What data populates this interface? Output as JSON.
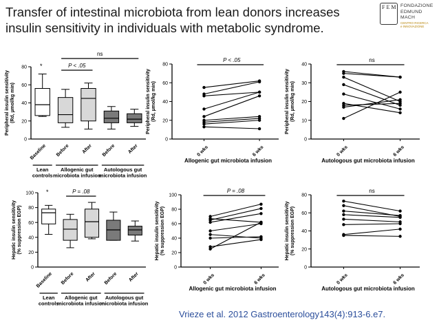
{
  "title": {
    "line1": "Transfer of intestinal microbiota from lean donors increases",
    "line2": "insulin sensitivity in individuals with metabolic syndrome."
  },
  "logo": {
    "lines": [
      "FONDAZIONE",
      "EDMUND",
      "MACH"
    ],
    "sub_lines": [
      "CENTRO RICERCA",
      "e INNOVAZIONE"
    ],
    "mark": "F E M"
  },
  "citation": "Vrieze et al. 2012 Gastroenterology143(4):913-6.e7.",
  "colors": {
    "text": "#1a1a1a",
    "citation": "#2b4e9b",
    "box_white": "#ffffff",
    "box_light": "#d8d8d8",
    "box_dark": "#7a7a7a",
    "line": "#000000"
  },
  "chart_data": [
    {
      "id": "ris-box",
      "type": "box",
      "ylabel": [
        "Peripheral insulin sensitivity",
        "(Rd, µmol/kg min)"
      ],
      "ylim": [
        0,
        80
      ],
      "yticks": [
        0,
        20,
        40,
        60,
        80
      ],
      "categories": [
        "Baseline",
        "Before",
        "After",
        "Before",
        "After"
      ],
      "boxes": [
        {
          "min": 25,
          "q1": 26,
          "median": 38,
          "q3": 56,
          "max": 72,
          "fill": "white"
        },
        {
          "min": 13,
          "q1": 18,
          "median": 27,
          "q3": 46,
          "max": 55,
          "fill": "light"
        },
        {
          "min": 11,
          "q1": 20,
          "median": 45,
          "q3": 56,
          "max": 62,
          "fill": "light"
        },
        {
          "min": 11,
          "q1": 18,
          "median": 23,
          "q3": 31,
          "max": 36,
          "fill": "dark"
        },
        {
          "min": 14,
          "q1": 18,
          "median": 22,
          "q3": 28,
          "max": 33,
          "fill": "dark"
        }
      ],
      "annotations": {
        "star": "*",
        "pvalue": "P < .05",
        "ns": "ns"
      },
      "group_labels": [
        [
          "Lean",
          "controls"
        ],
        [
          "Allogenic gut",
          "microbiota infusion"
        ],
        [
          "Autologous gut",
          "microbiota infusion"
        ]
      ]
    },
    {
      "id": "ris-allo",
      "type": "paired-line",
      "ylabel": [
        "Peripheral insulin sensitivity",
        "(Rd, µmol/kg min)"
      ],
      "ylim": [
        0,
        80
      ],
      "yticks": [
        0,
        20,
        40,
        60,
        80
      ],
      "categories": [
        "0 wks",
        "6 wks"
      ],
      "pairs": [
        [
          13,
          11
        ],
        [
          16,
          20
        ],
        [
          18,
          22
        ],
        [
          20,
          24
        ],
        [
          24,
          46
        ],
        [
          32,
          50
        ],
        [
          46,
          50
        ],
        [
          48,
          61
        ],
        [
          55,
          62
        ]
      ],
      "xlabel": "Allogenic gut microbiota infusion",
      "annotation": "P < .05"
    },
    {
      "id": "ris-auto",
      "type": "paired-line",
      "ylabel": [
        "Peripheral insulin sensitivity",
        "(Rd, µmol/kg min)"
      ],
      "ylim": [
        0,
        40
      ],
      "yticks": [
        0,
        10,
        20,
        30,
        40
      ],
      "categories": [
        "0 wks",
        "6 wks"
      ],
      "pairs": [
        [
          11,
          25
        ],
        [
          17,
          21
        ],
        [
          18,
          19
        ],
        [
          19,
          14
        ],
        [
          24,
          16
        ],
        [
          29,
          18
        ],
        [
          33,
          20
        ],
        [
          35,
          33
        ],
        [
          36,
          33
        ]
      ],
      "xlabel": "Autologous gut microbiota infusion",
      "annotation": "ns"
    },
    {
      "id": "egp-box",
      "type": "box",
      "ylabel": [
        "Hepatic insulin sensitivity",
        "(% suppression EGP)"
      ],
      "ylim": [
        0,
        100
      ],
      "yticks": [
        0,
        20,
        40,
        60,
        80,
        100
      ],
      "categories": [
        "Baseline",
        "Before",
        "After",
        "Before",
        "After"
      ],
      "boxes": [
        {
          "min": 44,
          "q1": 58,
          "median": 73,
          "q3": 78,
          "max": 83,
          "fill": "white"
        },
        {
          "min": 26,
          "q1": 36,
          "median": 51,
          "q3": 64,
          "max": 71,
          "fill": "light"
        },
        {
          "min": 38,
          "q1": 40,
          "median": 61,
          "q3": 78,
          "max": 87,
          "fill": "light"
        },
        {
          "min": 36,
          "q1": 36,
          "median": 50,
          "q3": 63,
          "max": 74,
          "fill": "dark"
        },
        {
          "min": 35,
          "q1": 43,
          "median": 50,
          "q3": 55,
          "max": 62,
          "fill": "dark"
        }
      ],
      "annotations": {
        "star": "*",
        "pvalue": "P = .08"
      },
      "group_labels": [
        [
          "Lean",
          "controls"
        ],
        [
          "Allogenic gut",
          "microbiota infusion"
        ],
        [
          "Autologous gut",
          "microbiota infusion"
        ]
      ]
    },
    {
      "id": "egp-allo",
      "type": "paired-line",
      "ylabel": [
        "Hepatic insulin sensitivity",
        "(% suppression EGP)"
      ],
      "ylim": [
        0,
        100
      ],
      "yticks": [
        0,
        20,
        40,
        60,
        80,
        100
      ],
      "categories": [
        "0 wks",
        "6 wks"
      ],
      "pairs": [
        [
          25,
          62
        ],
        [
          28,
          38
        ],
        [
          40,
          42
        ],
        [
          45,
          40
        ],
        [
          50,
          60
        ],
        [
          62,
          74
        ],
        [
          65,
          81
        ],
        [
          67,
          62
        ],
        [
          70,
          87
        ]
      ],
      "xlabel": "Allogenic gut microbiota infusion",
      "annotation": "P = .08"
    },
    {
      "id": "egp-auto",
      "type": "paired-line",
      "ylabel": [
        "Hepatic insulin sensitivity",
        "(% suppression EGP)"
      ],
      "ylim": [
        0,
        80
      ],
      "yticks": [
        0,
        20,
        40,
        60,
        80
      ],
      "categories": [
        "0 wks",
        "6 wks"
      ],
      "pairs": [
        [
          35,
          34
        ],
        [
          36,
          42
        ],
        [
          47,
          48
        ],
        [
          53,
          50
        ],
        [
          58,
          55
        ],
        [
          62,
          57
        ],
        [
          68,
          56
        ],
        [
          73,
          62
        ]
      ],
      "xlabel": "Autologous gut microbiota infusion",
      "annotation": "ns"
    }
  ]
}
